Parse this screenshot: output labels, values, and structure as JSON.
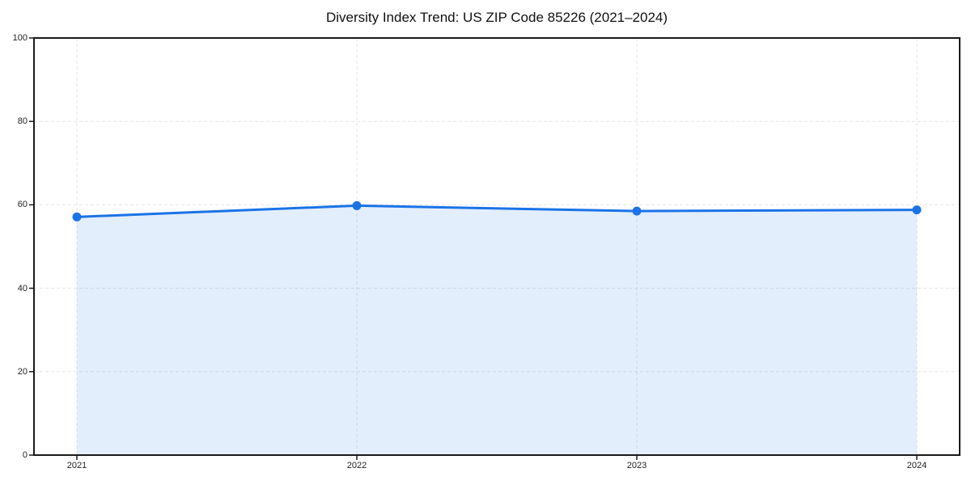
{
  "chart_data": {
    "type": "area",
    "title": "Diversity Index Trend: US ZIP Code 85226 (2021–2024)",
    "series_name": "Diversity Index",
    "x": [
      2021,
      2022,
      2023,
      2024
    ],
    "values": [
      57.1,
      59.8,
      58.5,
      58.8
    ],
    "xlabel": "",
    "ylabel": "",
    "ylim": [
      0,
      100
    ],
    "yticks": [
      0,
      20,
      40,
      60,
      80,
      100
    ],
    "xticks": [
      "2021",
      "2022",
      "2023",
      "2024"
    ],
    "grid": true,
    "grid_style": "dashed",
    "legend": "none",
    "colors": {
      "line": "#1a73e8",
      "marker": "#1a73e8",
      "fill": "rgba(26, 115, 232, 0.12)",
      "gridline": "#e4e4e4",
      "spine": "#1a1a1a",
      "background": "#ffffff",
      "tick_label": "#222222",
      "title": "#111111"
    }
  }
}
